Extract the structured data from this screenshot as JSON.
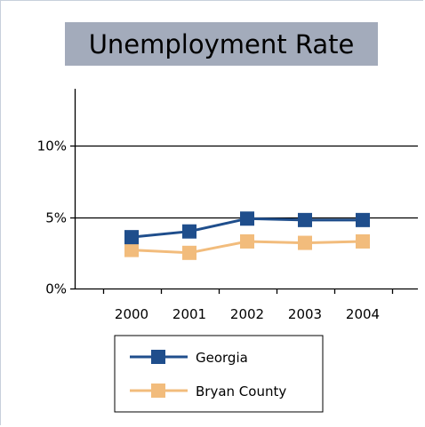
{
  "chart_data": {
    "type": "line",
    "title": "Unemployment Rate",
    "xlabel": "",
    "ylabel": "",
    "categories": [
      "2000",
      "2001",
      "2002",
      "2003",
      "2004"
    ],
    "y_ticks": [
      {
        "value": 0,
        "label": "0%"
      },
      {
        "value": 5,
        "label": "5%"
      },
      {
        "value": 10,
        "label": "10%"
      }
    ],
    "ylim": [
      0,
      14
    ],
    "grid": "horizontal major gridlines at 5% and 10%",
    "legend_position": "bottom",
    "series": [
      {
        "name": "Georgia",
        "color": "#1f4e8c",
        "values": [
          3.6,
          4.0,
          4.9,
          4.8,
          4.8
        ]
      },
      {
        "name": "Bryan County",
        "color": "#f2bc7c",
        "values": [
          2.7,
          2.5,
          3.3,
          3.2,
          3.3
        ]
      }
    ],
    "title_background": "#a3abbb"
  }
}
